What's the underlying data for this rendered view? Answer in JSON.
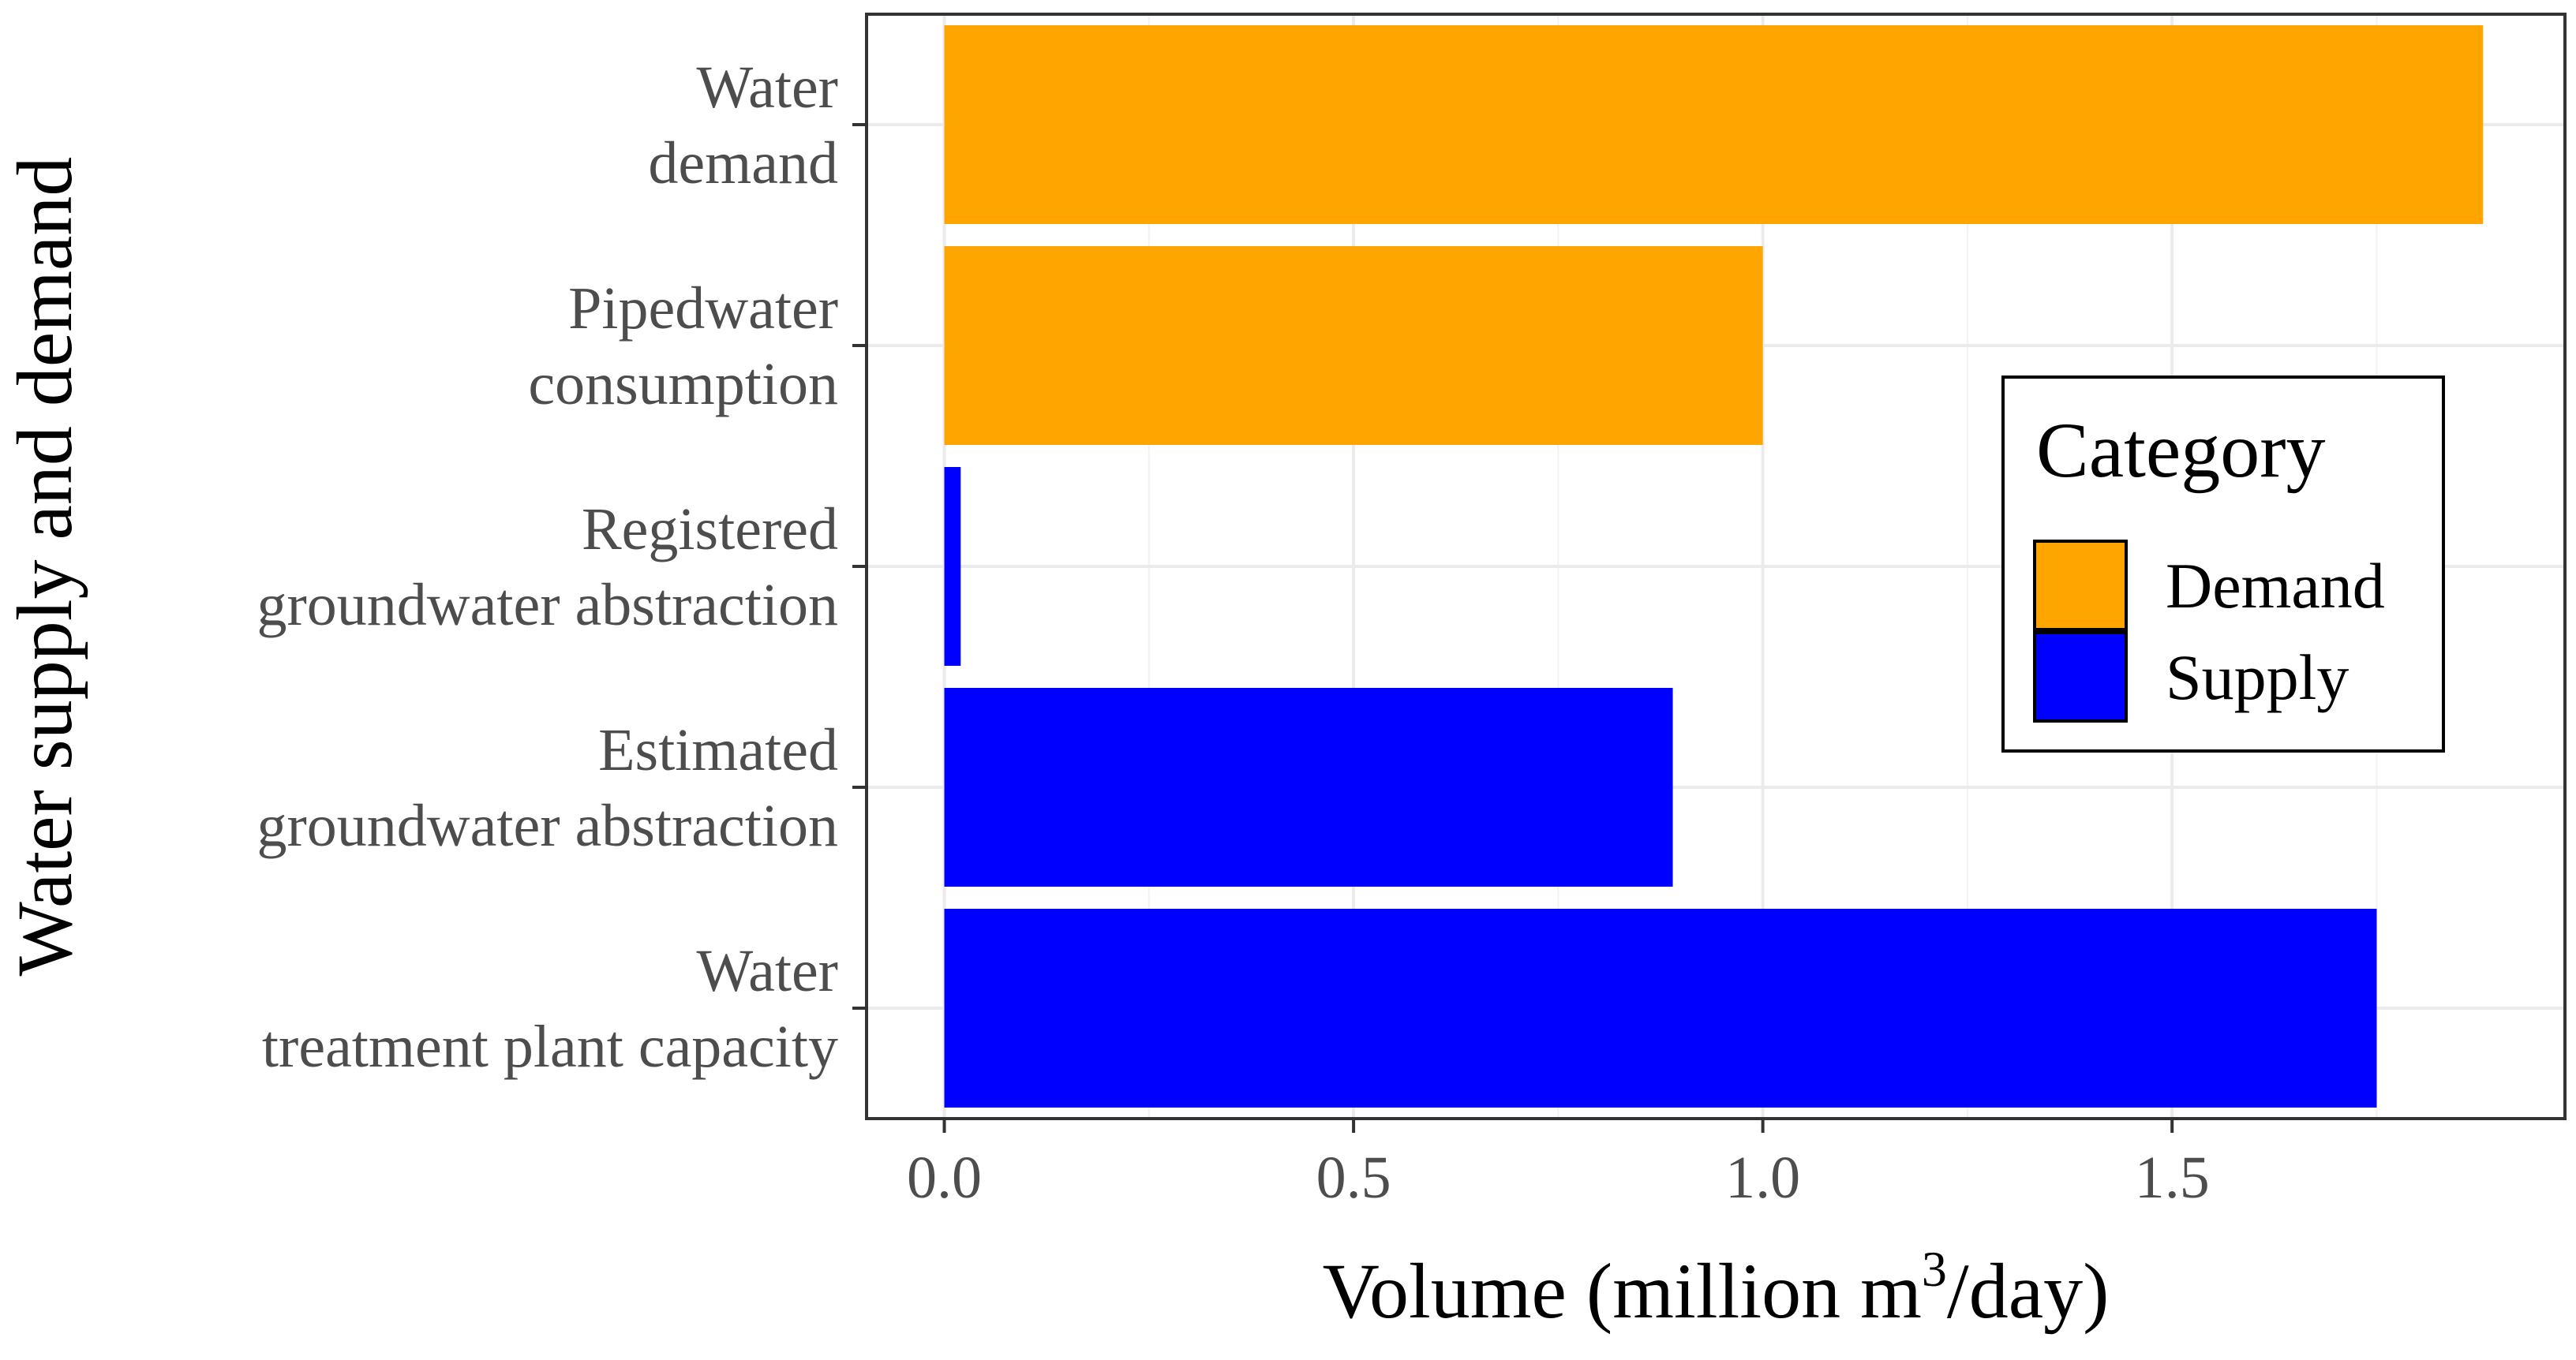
{
  "chart_data": {
    "type": "bar",
    "orientation": "horizontal",
    "categories": [
      [
        "Water",
        "demand"
      ],
      [
        "Pipedwater",
        "consumption"
      ],
      [
        "Registered",
        "groundwater abstraction"
      ],
      [
        "Estimated",
        "groundwater abstraction"
      ],
      [
        "Water",
        "treatment plant capacity"
      ]
    ],
    "values": [
      1.88,
      1.0,
      0.02,
      0.89,
      1.75
    ],
    "groups": [
      "Demand",
      "Demand",
      "Supply",
      "Supply",
      "Supply"
    ],
    "xlabel": "Volume  (million m",
    "xlabel_sup": "3",
    "xlabel_suffix": "/day)",
    "ylabel": "Water supply and demand",
    "xlim": [
      -0.095,
      1.98
    ],
    "xticks": [
      0.0,
      0.5,
      1.0,
      1.5
    ],
    "xtick_labels": [
      "0.0",
      "0.5",
      "1.0",
      "1.5"
    ],
    "grid": true,
    "legend": {
      "title": "Category",
      "position": "right-inside",
      "items": [
        {
          "label": "Demand",
          "color": "#FFA500"
        },
        {
          "label": "Supply",
          "color": "#0000FF"
        }
      ]
    }
  }
}
